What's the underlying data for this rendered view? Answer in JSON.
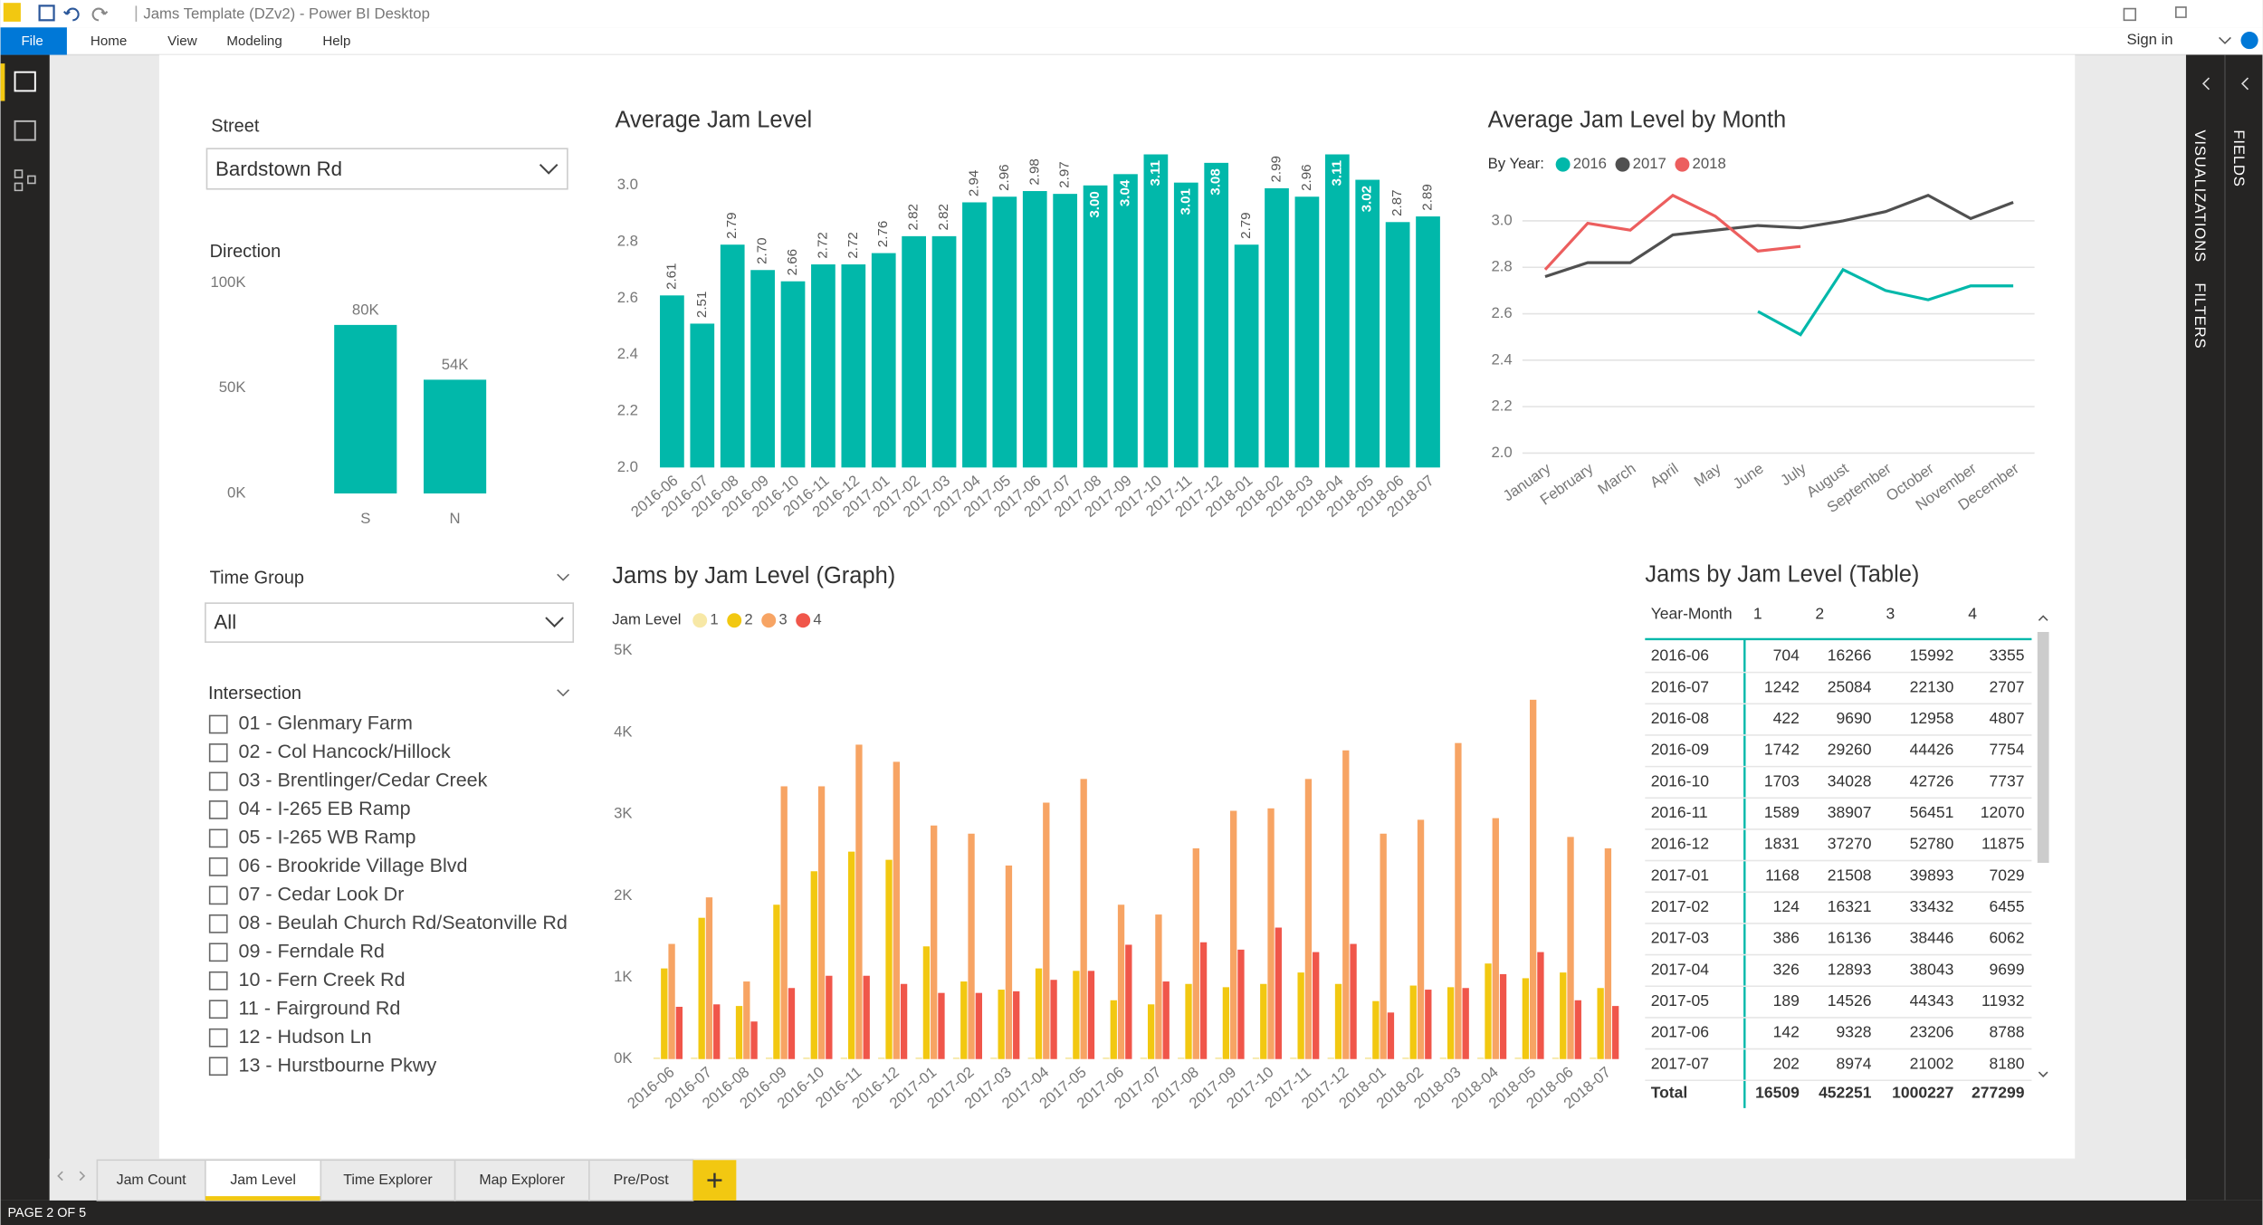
{
  "window": {
    "title": "Jams Template (DZv2) - Power BI Desktop",
    "sign_in": "Sign in"
  },
  "menu": [
    "File",
    "Home",
    "View",
    "Modeling",
    "Help"
  ],
  "panes": [
    "VISUALIZATIONS",
    "FILTERS",
    "FIELDS"
  ],
  "slicers": {
    "street": {
      "label": "Street",
      "value": "Bardstown Rd"
    },
    "time_group": {
      "label": "Time Group",
      "value": "All"
    },
    "intersection": {
      "label": "Intersection",
      "items": [
        "01 - Glenmary Farm",
        "02 - Col Hancock/Hillock",
        "03 - Brentlinger/Cedar Creek",
        "04 - I-265 EB Ramp",
        "05 - I-265 WB Ramp",
        "06 - Brookride Village Blvd",
        "07 - Cedar Look Dr",
        "08 - Beulah Church Rd/Seatonville Rd",
        "09 - Ferndale Rd",
        "10 - Fern Creek Rd",
        "11 - Fairground Rd",
        "12 - Hudson Ln",
        "13 - Hurstbourne Pkwy"
      ]
    }
  },
  "chart_data": [
    {
      "type": "bar",
      "title": "Direction",
      "categories": [
        "S",
        "N"
      ],
      "values": [
        80000,
        54000
      ],
      "value_labels": [
        "80K",
        "54K"
      ],
      "color": "#01b8aa",
      "ylim": [
        0,
        100000
      ],
      "yticks": [
        {
          "value": 0,
          "label": "0K"
        },
        {
          "value": 50000,
          "label": "50K"
        },
        {
          "value": 100000,
          "label": "100K"
        }
      ]
    },
    {
      "type": "bar",
      "title": "Average Jam Level",
      "categories": [
        "2016-06",
        "2016-07",
        "2016-08",
        "2016-09",
        "2016-10",
        "2016-11",
        "2016-12",
        "2017-01",
        "2017-02",
        "2017-03",
        "2017-04",
        "2017-05",
        "2017-06",
        "2017-07",
        "2017-08",
        "2017-09",
        "2017-10",
        "2017-11",
        "2017-12",
        "2018-01",
        "2018-02",
        "2018-03",
        "2018-04",
        "2018-05",
        "2018-06",
        "2018-07"
      ],
      "values": [
        2.61,
        2.51,
        2.79,
        2.7,
        2.66,
        2.72,
        2.72,
        2.76,
        2.82,
        2.82,
        2.94,
        2.96,
        2.98,
        2.97,
        3,
        3.04,
        3.11,
        3.01,
        3.08,
        2.79,
        2.99,
        2.96,
        3.11,
        3.02,
        2.87,
        2.89
      ],
      "value_labels": [
        "2.61",
        "2.51",
        "2.79",
        "2.70",
        "2.66",
        "2.72",
        "2.72",
        "2.76",
        "2.82",
        "2.82",
        "2.94",
        "2.96",
        "2.98",
        "2.97",
        "3.00",
        "3.04",
        "3.11",
        "3.01",
        "3.08",
        "2.79",
        "2.99",
        "2.96",
        "3.11",
        "3.02",
        "2.87",
        "2.89"
      ],
      "color": "#01b8aa",
      "ylim": [
        2,
        3.11
      ],
      "yticks": [
        {
          "value": 2,
          "label": "2.0"
        },
        2.2,
        2.4,
        2.6,
        2.8,
        {
          "value": 3,
          "label": "3.0"
        }
      ]
    },
    {
      "type": "line",
      "title": "Average Jam Level by Month",
      "legend_title": "By Year:",
      "categories": [
        "January",
        "February",
        "March",
        "April",
        "May",
        "June",
        "July",
        "August",
        "September",
        "October",
        "November",
        "December"
      ],
      "series": [
        {
          "name": "2016",
          "color": "#01b8aa",
          "values": [
            null,
            null,
            null,
            null,
            null,
            2.61,
            2.51,
            2.79,
            2.7,
            2.66,
            2.72,
            2.72
          ]
        },
        {
          "name": "2017",
          "color": "#505050",
          "values": [
            2.76,
            2.82,
            2.82,
            2.94,
            2.96,
            2.98,
            2.97,
            3,
            3.04,
            3.11,
            3.01,
            3.08
          ]
        },
        {
          "name": "2018",
          "color": "#ec5e5e",
          "values": [
            2.79,
            2.99,
            2.96,
            3.11,
            3.02,
            2.87,
            2.89,
            null,
            null,
            null,
            null,
            null
          ]
        }
      ],
      "ylim": [
        2,
        3.1
      ],
      "yticks": [
        {
          "value": 2,
          "label": "2.0"
        },
        2.2,
        2.4,
        2.6,
        2.8,
        {
          "value": 3,
          "label": "3.0"
        }
      ],
      "grid": true
    },
    {
      "type": "bar",
      "title": "Jams by Jam Level (Graph)",
      "legend_title": "Jam Level",
      "categories": [
        "2016-06",
        "2016-07",
        "2016-08",
        "2016-09",
        "2016-10",
        "2016-11",
        "2016-12",
        "2017-01",
        "2017-02",
        "2017-03",
        "2017-04",
        "2017-05",
        "2017-06",
        "2017-07",
        "2017-08",
        "2017-09",
        "2017-10",
        "2017-11",
        "2017-12",
        "2018-01",
        "2018-02",
        "2018-03",
        "2018-04",
        "2018-05",
        "2018-06",
        "2018-07"
      ],
      "series": [
        {
          "name": "1",
          "color": "#f7e8a6",
          "values": [
            20,
            20,
            20,
            20,
            20,
            20,
            20,
            20,
            20,
            20,
            20,
            20,
            20,
            20,
            20,
            20,
            20,
            20,
            20,
            20,
            20,
            20,
            20,
            20,
            20,
            20
          ]
        },
        {
          "name": "2",
          "color": "#f2c811",
          "values": [
            1110,
            1730,
            650,
            1890,
            2300,
            2540,
            2440,
            1380,
            950,
            850,
            1110,
            1080,
            720,
            670,
            920,
            880,
            920,
            1060,
            920,
            710,
            900,
            880,
            1170,
            990,
            1060,
            870
          ]
        },
        {
          "name": "3",
          "color": "#f7a464",
          "values": [
            1410,
            1980,
            950,
            3340,
            3340,
            3850,
            3640,
            2860,
            2760,
            2370,
            3140,
            3430,
            1890,
            1770,
            2580,
            3040,
            3070,
            3430,
            3780,
            2760,
            2930,
            3870,
            2950,
            4400,
            2720,
            2580
          ]
        },
        {
          "name": "4",
          "color": "#f0564a",
          "values": [
            640,
            670,
            460,
            870,
            1020,
            1020,
            920,
            810,
            810,
            830,
            970,
            1080,
            1400,
            950,
            1430,
            1340,
            1610,
            1310,
            1410,
            570,
            850,
            870,
            1040,
            1310,
            720,
            650
          ]
        }
      ],
      "ylim": [
        0,
        5000
      ],
      "yticks": [
        {
          "value": 0,
          "label": "0K"
        },
        {
          "value": 1000,
          "label": "1K"
        },
        {
          "value": 2000,
          "label": "2K"
        },
        {
          "value": 3000,
          "label": "3K"
        },
        {
          "value": 4000,
          "label": "4K"
        },
        {
          "value": 5000,
          "label": "5K"
        }
      ]
    }
  ],
  "table": {
    "title": "Jams by Jam Level (Table)",
    "columns": [
      "Year-Month",
      "1",
      "2",
      "3",
      "4"
    ],
    "rows": [
      [
        "2016-06",
        704,
        16266,
        15992,
        3355
      ],
      [
        "2016-07",
        1242,
        25084,
        22130,
        2707
      ],
      [
        "2016-08",
        422,
        9690,
        12958,
        4807
      ],
      [
        "2016-09",
        1742,
        29260,
        44426,
        7754
      ],
      [
        "2016-10",
        1703,
        34028,
        42726,
        7737
      ],
      [
        "2016-11",
        1589,
        38907,
        56451,
        12070
      ],
      [
        "2016-12",
        1831,
        37270,
        52780,
        11875
      ],
      [
        "2017-01",
        1168,
        21508,
        39893,
        7029
      ],
      [
        "2017-02",
        124,
        16321,
        33432,
        6455
      ],
      [
        "2017-03",
        386,
        16136,
        38446,
        6062
      ],
      [
        "2017-04",
        326,
        12893,
        38043,
        9699
      ],
      [
        "2017-05",
        189,
        14526,
        44343,
        11932
      ],
      [
        "2017-06",
        142,
        9328,
        23206,
        8788
      ],
      [
        "2017-07",
        202,
        8974,
        21002,
        8180
      ]
    ],
    "total": [
      "Total",
      16509,
      452251,
      1000227,
      277299
    ]
  },
  "tabs": [
    "Jam Count",
    "Jam Level",
    "Time Explorer",
    "Map Explorer",
    "Pre/Post"
  ],
  "status": "PAGE 2 OF 5"
}
